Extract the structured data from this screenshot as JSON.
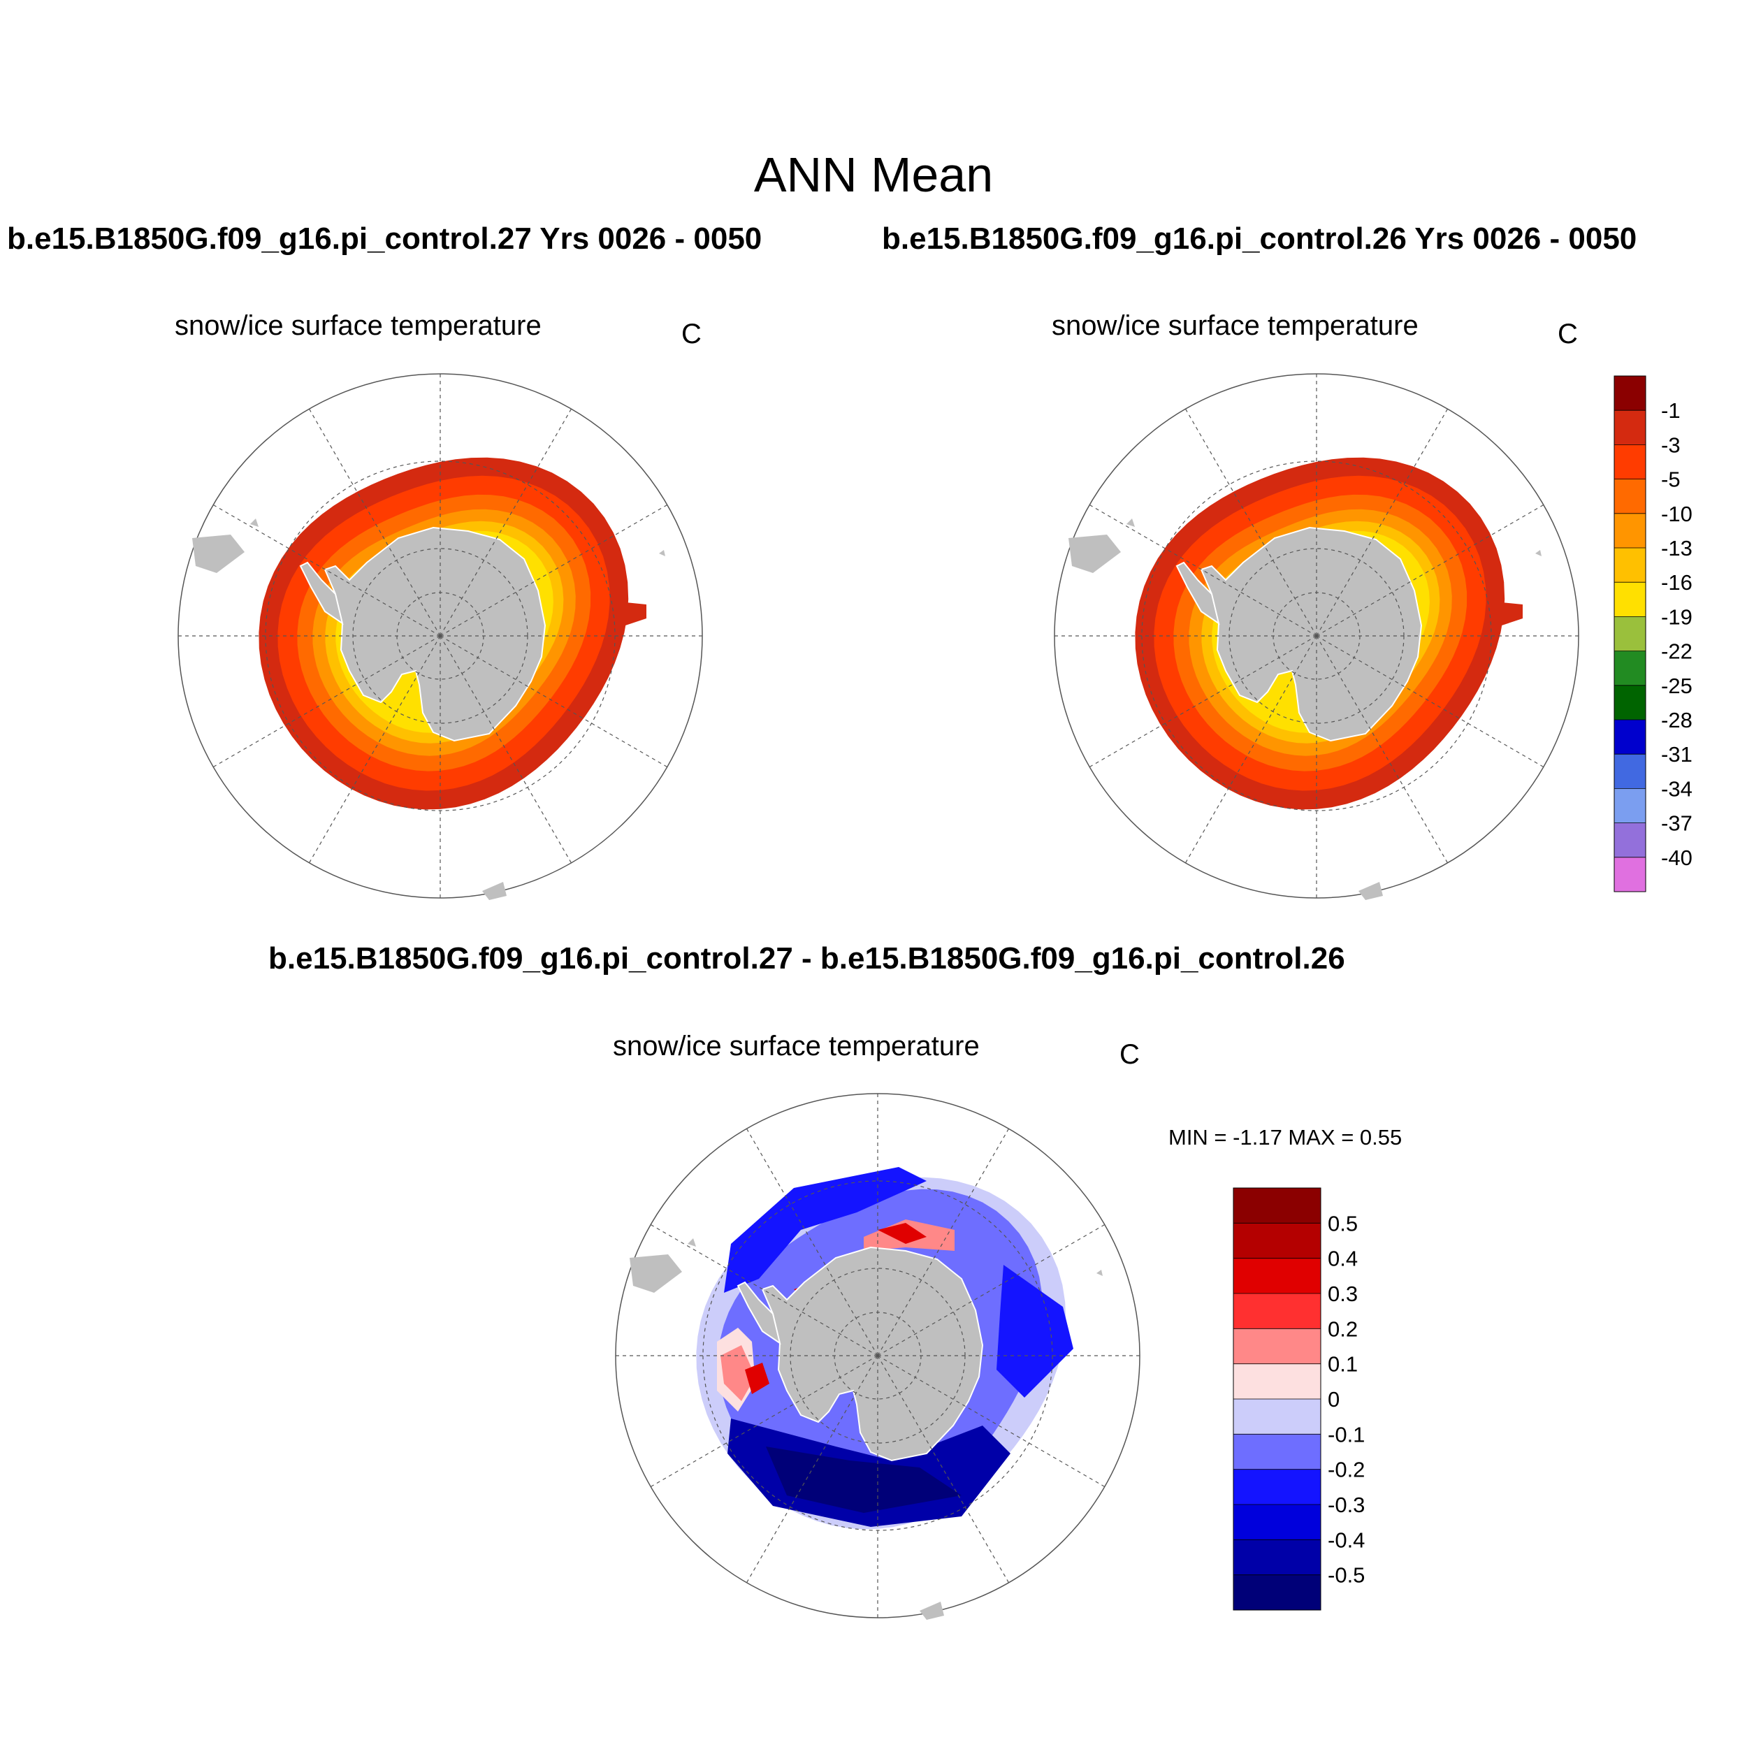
{
  "figure": {
    "title": "ANN Mean",
    "case_a_title": "b.e15.B1850G.f09_g16.pi_control.27  Yrs 0026 - 0050",
    "case_b_title": "b.e15.B1850G.f09_g16.pi_control.26  Yrs 0026 - 0050",
    "diff_title": "b.e15.B1850G.f09_g16.pi_control.27 - b.e15.B1850G.f09_g16.pi_control.26"
  },
  "panels": {
    "top_left": {
      "variable": "snow/ice surface temperature",
      "units": "C"
    },
    "top_right": {
      "variable": "snow/ice surface temperature",
      "units": "C"
    },
    "bottom": {
      "variable": "snow/ice surface temperature",
      "units": "C",
      "min_max": "MIN =  -1.17 MAX =   0.55"
    }
  },
  "colorbars": {
    "temperature": {
      "labels": [
        "-1",
        "-3",
        "-5",
        "-10",
        "-13",
        "-16",
        "-19",
        "-22",
        "-25",
        "-28",
        "-31",
        "-34",
        "-37",
        "-40"
      ],
      "colors": [
        "#8b0000",
        "#d42a10",
        "#ff3c00",
        "#ff6a00",
        "#ff9500",
        "#ffc000",
        "#ffe000",
        "#9ac03c",
        "#228b22",
        "#006400",
        "#0000cd",
        "#4169e1",
        "#7b9ef0",
        "#9370db",
        "#e070e0"
      ]
    },
    "difference": {
      "labels": [
        "0.5",
        "0.4",
        "0.3",
        "0.2",
        "0.1",
        "0",
        "-0.1",
        "-0.2",
        "-0.3",
        "-0.4",
        "-0.5"
      ],
      "colors": [
        "#8b0000",
        "#b40000",
        "#e00000",
        "#ff3030",
        "#ff8888",
        "#fde0e0",
        "#cccdfa",
        "#6e6eff",
        "#1414ff",
        "#0000dc",
        "#0000a8",
        "#000078"
      ]
    }
  },
  "map_colors": {
    "land": "#bfbfbf",
    "edge": "#d42a10",
    "ring_minus3": "#ff3c00",
    "ring_minus5": "#ff6a00",
    "ring_minus10": "#ff9500",
    "ring_minus13": "#ffc000",
    "ring_minus16": "#ffe000",
    "green": "#9ac03c",
    "diff_light_blue": "#cccdfa",
    "diff_mid_blue": "#6e6eff",
    "diff_blue": "#1414ff",
    "diff_dark_blue": "#0000a8",
    "diff_navy": "#000078",
    "diff_light_red": "#ff8888",
    "diff_red": "#e00000",
    "diff_dark_red": "#b40000",
    "diff_pink": "#fde0e0"
  }
}
